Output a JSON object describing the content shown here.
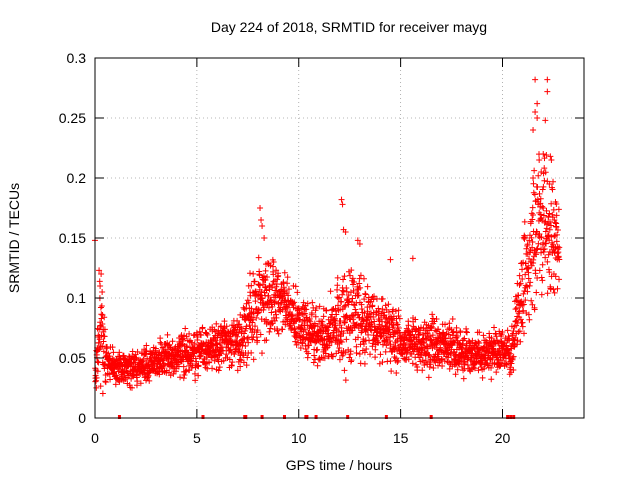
{
  "chart_data": {
    "type": "scatter",
    "title": "Day 224 of 2018, SRMTID for receiver mayg",
    "xlabel": "GPS time / hours",
    "ylabel": "SRMTID / TECUs",
    "xlim": [
      0,
      24
    ],
    "ylim": [
      0,
      0.3
    ],
    "xticks": [
      0,
      5,
      10,
      15,
      20
    ],
    "xtick_labels": [
      "0",
      "5",
      "10",
      "15",
      "20"
    ],
    "yticks": [
      0,
      0.05,
      0.1,
      0.15,
      0.2,
      0.25,
      0.3
    ],
    "ytick_labels": [
      "0",
      "0.05",
      "0.1",
      "0.15",
      "0.2",
      "0.25",
      "0.3"
    ],
    "grid": true,
    "marker": "+",
    "color": "#ff0000",
    "series": [
      {
        "name": "SRMTID",
        "envelope": [
          {
            "x": 0.0,
            "mean": 0.035,
            "spread": 0.012
          },
          {
            "x": 0.3,
            "mean": 0.075,
            "spread": 0.04
          },
          {
            "x": 0.6,
            "mean": 0.045,
            "spread": 0.015
          },
          {
            "x": 1.5,
            "mean": 0.04,
            "spread": 0.012
          },
          {
            "x": 3.0,
            "mean": 0.048,
            "spread": 0.014
          },
          {
            "x": 5.0,
            "mean": 0.055,
            "spread": 0.016
          },
          {
            "x": 7.0,
            "mean": 0.065,
            "spread": 0.02
          },
          {
            "x": 8.0,
            "mean": 0.095,
            "spread": 0.035
          },
          {
            "x": 9.0,
            "mean": 0.1,
            "spread": 0.025
          },
          {
            "x": 10.0,
            "mean": 0.08,
            "spread": 0.02
          },
          {
            "x": 11.0,
            "mean": 0.065,
            "spread": 0.02
          },
          {
            "x": 12.2,
            "mean": 0.08,
            "spread": 0.04
          },
          {
            "x": 13.0,
            "mean": 0.085,
            "spread": 0.03
          },
          {
            "x": 15.0,
            "mean": 0.065,
            "spread": 0.02
          },
          {
            "x": 17.0,
            "mean": 0.06,
            "spread": 0.018
          },
          {
            "x": 19.0,
            "mean": 0.05,
            "spread": 0.015
          },
          {
            "x": 20.5,
            "mean": 0.06,
            "spread": 0.02
          },
          {
            "x": 21.2,
            "mean": 0.13,
            "spread": 0.04
          },
          {
            "x": 21.8,
            "mean": 0.17,
            "spread": 0.06
          },
          {
            "x": 22.4,
            "mean": 0.15,
            "spread": 0.05
          },
          {
            "x": 22.8,
            "mean": 0.14,
            "spread": 0.03
          }
        ],
        "highlights": [
          [
            0.2,
            0.123
          ],
          [
            0.3,
            0.12
          ],
          [
            0.25,
            0.11
          ],
          [
            0.35,
            0.105
          ],
          [
            8.1,
            0.175
          ],
          [
            8.15,
            0.165
          ],
          [
            8.2,
            0.16
          ],
          [
            8.3,
            0.15
          ],
          [
            12.1,
            0.182
          ],
          [
            12.15,
            0.178
          ],
          [
            12.2,
            0.157
          ],
          [
            12.3,
            0.155
          ],
          [
            12.9,
            0.148
          ],
          [
            13.0,
            0.145
          ],
          [
            14.5,
            0.132
          ],
          [
            15.6,
            0.133
          ],
          [
            21.6,
            0.282
          ],
          [
            22.2,
            0.282
          ],
          [
            22.2,
            0.272
          ],
          [
            21.7,
            0.262
          ],
          [
            21.6,
            0.255
          ],
          [
            21.7,
            0.25
          ],
          [
            22.1,
            0.248
          ],
          [
            21.5,
            0.24
          ],
          [
            22.0,
            0.22
          ],
          [
            21.8,
            0.215
          ],
          [
            22.4,
            0.215
          ],
          [
            21.9,
            0.205
          ],
          [
            21.5,
            0.2
          ],
          [
            22.3,
            0.195
          ],
          [
            22.6,
            0.18
          ],
          [
            22.0,
            0.175
          ]
        ],
        "count": 2600
      }
    ],
    "rug_x": [
      1.2,
      5.3,
      7.35,
      7.4,
      8.2,
      9.3,
      10.35,
      10.4,
      10.85,
      12.4,
      14.3,
      16.5,
      20.25,
      20.4,
      20.55
    ]
  }
}
